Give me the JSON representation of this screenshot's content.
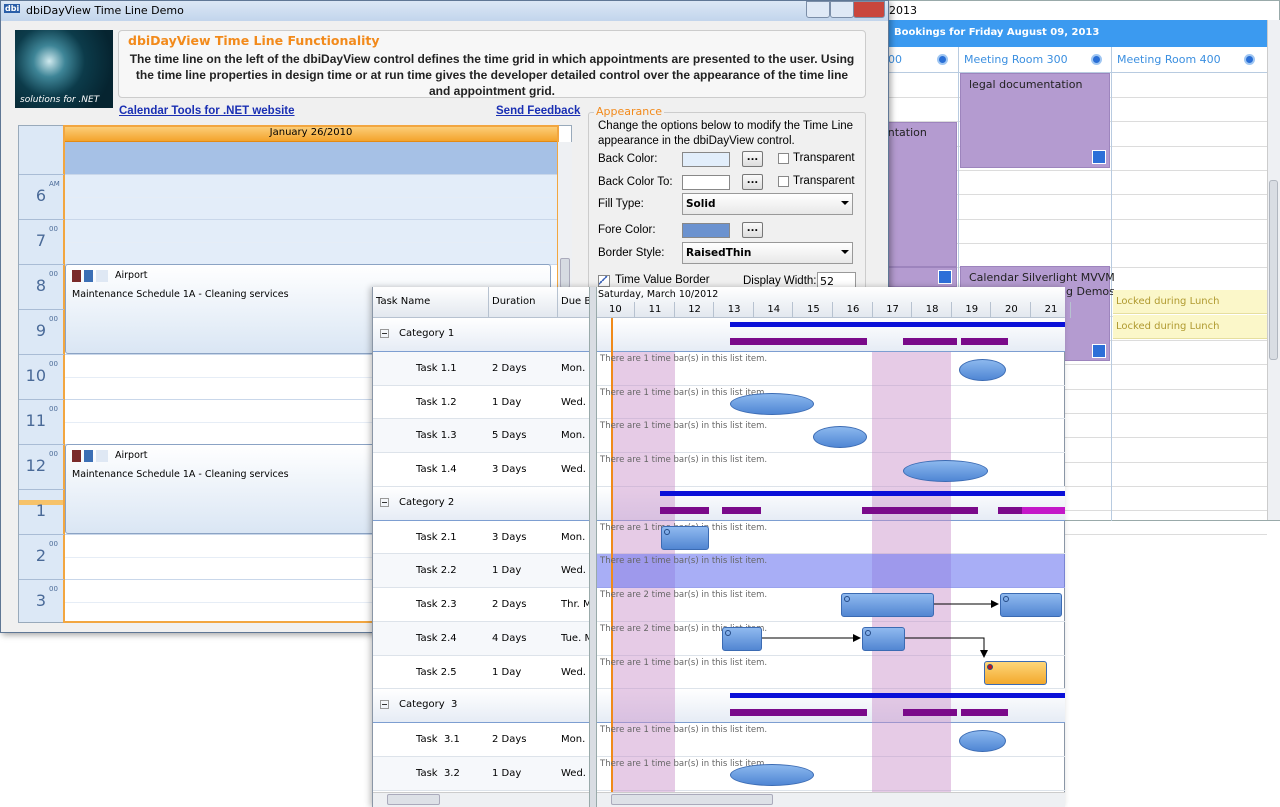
{
  "back_window": {
    "title": "2013",
    "header": "Bookings for Friday August 09, 2013",
    "columns": [
      "00",
      "Meeting Room 300",
      "Meeting Room 400"
    ],
    "appointments": [
      "legal documentation",
      "entation",
      "Calendar Silverlight MVVM",
      "g Demos"
    ],
    "locked": [
      "Locked during Lunch",
      "Locked during Lunch"
    ]
  },
  "main_window": {
    "title": "dbiDayView Time Line Demo",
    "icon": "dbi",
    "logo_text": "solutions for .NET",
    "heading": "dbiDayView Time Line Functionality",
    "description": "The time line on the left of the dbiDayView control defines the time grid in which appointments are presented to the user.  Using the time line properties in design time or at run time gives the developer detailed control over the appearance of the time line and appointment grid.",
    "links": [
      "Calendar Tools for .NET website",
      "Send Feedback"
    ],
    "date_header": "January 26/2010",
    "hours": [
      {
        "hour": "6",
        "minutes": "AM"
      },
      {
        "hour": "7",
        "minutes": "00"
      },
      {
        "hour": "8",
        "minutes": "00"
      },
      {
        "hour": "9",
        "minutes": "00"
      },
      {
        "hour": "10",
        "minutes": "00"
      },
      {
        "hour": "11",
        "minutes": "00"
      },
      {
        "hour": "12",
        "minutes": "00"
      },
      {
        "hour": "1"
      },
      {
        "hour": "2",
        "minutes": "00"
      },
      {
        "hour": "3",
        "minutes": "00"
      }
    ],
    "appointments": [
      {
        "subject": "Airport",
        "description": "Maintenance Schedule 1A - Cleaning services"
      },
      {
        "subject": "Airport",
        "description": "Maintenance Schedule 1A - Cleaning services"
      }
    ],
    "appearance": {
      "title": "Appearance",
      "description": "Change the options below to modify the Time Line appearance in the dbiDayView control.",
      "fields": [
        {
          "label": "Back Color:",
          "swatch": "#e2eefb",
          "button": "...",
          "option": "Transparent"
        },
        {
          "label": "Back Color To:",
          "swatch": "#ffffff",
          "button": "...",
          "option": "Transparent"
        },
        {
          "label": "Fill Type:",
          "selected": "Solid"
        },
        {
          "label": "Fore Color:",
          "swatch": "#6b92cf",
          "button": "..."
        },
        {
          "label": "Border Style:",
          "selected": "RaisedThin"
        }
      ],
      "time_value_border": {
        "label": "Time Value Border",
        "checked": true
      },
      "display_width": {
        "label": "Display Width:",
        "value": "52"
      }
    }
  },
  "gantt": {
    "columns": [
      "Task Name",
      "Duration",
      "Due B"
    ],
    "date": "Saturday, March 10/2012",
    "hours": [
      "10",
      "11",
      "12",
      "13",
      "14",
      "15",
      "16",
      "17",
      "18",
      "19",
      "20",
      "21"
    ],
    "groups": [
      {
        "name": "Category 1",
        "tasks": [
          {
            "name": "Task 1.1",
            "duration": "2 Days",
            "due": "Mon.",
            "info": "There are 1 time bar(s) in this list item."
          },
          {
            "name": "Task 1.2",
            "duration": "1 Day",
            "due": "Wed.",
            "info": "There are 1 time bar(s) in this list item."
          },
          {
            "name": "Task 1.3",
            "duration": "5 Days",
            "due": "Mon.",
            "info": "There are 1 time bar(s) in this list item."
          },
          {
            "name": "Task 1.4",
            "duration": "3 Days",
            "due": "Wed.",
            "info": "There are 1 time bar(s) in this list item."
          }
        ]
      },
      {
        "name": "Category 2",
        "tasks": [
          {
            "name": "Task 2.1",
            "duration": "3 Days",
            "due": "Mon.",
            "info": "There are 1 time bar(s) in this list item."
          },
          {
            "name": "Task 2.2",
            "duration": "1 Day",
            "due": "Wed.",
            "info": "There are 1 time bar(s) in this list item."
          },
          {
            "name": "Task 2.3",
            "duration": "2 Days",
            "due": "Thr. M",
            "info": "There are 2 time bar(s) in this list item."
          },
          {
            "name": "Task 2.4",
            "duration": "4 Days",
            "due": "Tue. M",
            "info": "There are 2 time bar(s) in this list item."
          },
          {
            "name": "Task 2.5",
            "duration": "1 Day",
            "due": "Wed.",
            "info": "There are 1 time bar(s) in this list item."
          }
        ]
      },
      {
        "name": "Category  3",
        "tasks": [
          {
            "name": "Task  3.1",
            "duration": "2 Days",
            "due": "Mon.",
            "info": "There are 1 time bar(s) in this list item."
          },
          {
            "name": "Task  3.2",
            "duration": "1 Day",
            "due": "Wed.",
            "info": "There are 1 time bar(s) in this list item."
          }
        ]
      }
    ]
  }
}
